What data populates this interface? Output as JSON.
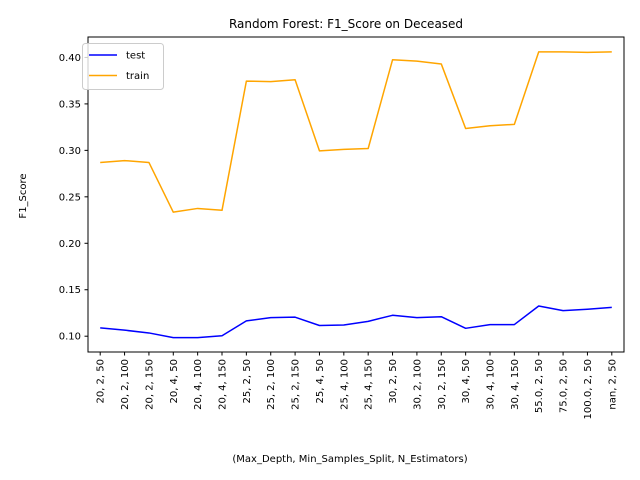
{
  "chart_data": {
    "type": "line",
    "title": "Random Forest: F1_Score on Deceased",
    "xlabel": "(Max_Depth, Min_Samples_Split, N_Estimators)",
    "ylabel": "F1_Score",
    "ylim": [
      0.083,
      0.422
    ],
    "yticks": [
      0.1,
      0.15,
      0.2,
      0.25,
      0.3,
      0.35,
      0.4
    ],
    "ytick_labels": [
      "0.10",
      "0.15",
      "0.20",
      "0.25",
      "0.30",
      "0.35",
      "0.40"
    ],
    "categories": [
      "20, 2, 50",
      "20, 2, 100",
      "20, 2, 150",
      "20, 4, 50",
      "20, 4, 100",
      "20, 4, 150",
      "25, 2, 50",
      "25, 2, 100",
      "25, 2, 150",
      "25, 4, 50",
      "25, 4, 100",
      "25, 4, 150",
      "30, 2, 50",
      "30, 2, 100",
      "30, 2, 150",
      "30, 4, 50",
      "30, 4, 100",
      "30, 4, 150",
      "55.0, 2, 50",
      "75.0, 2, 50",
      "100.0, 2, 50",
      "nan, 2, 50"
    ],
    "series": [
      {
        "name": "test",
        "color": "#0000ff",
        "values": [
          0.109,
          0.1065,
          0.1035,
          0.0985,
          0.0985,
          0.1005,
          0.1165,
          0.12,
          0.1205,
          0.1115,
          0.112,
          0.116,
          0.1225,
          0.12,
          0.121,
          0.1085,
          0.1125,
          0.1125,
          0.1325,
          0.1275,
          0.129,
          0.131
        ]
      },
      {
        "name": "train",
        "color": "#ffa500",
        "values": [
          0.287,
          0.289,
          0.287,
          0.2335,
          0.2375,
          0.2355,
          0.3745,
          0.374,
          0.376,
          0.2995,
          0.301,
          0.302,
          0.3975,
          0.396,
          0.393,
          0.3235,
          0.3265,
          0.328,
          0.406,
          0.406,
          0.4055,
          0.406
        ]
      }
    ],
    "grid": false,
    "legend_position": "top-left"
  }
}
